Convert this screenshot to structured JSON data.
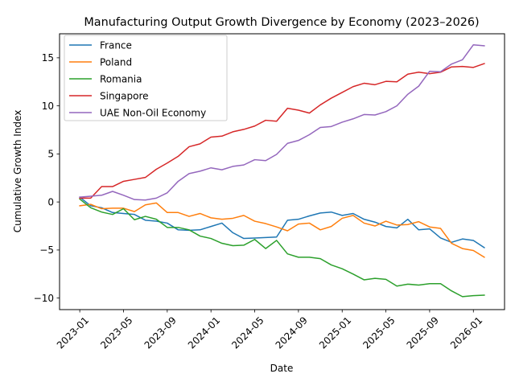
{
  "chart_data": {
    "type": "line",
    "title": "Manufacturing Output Growth Divergence by Economy (2023–2026)",
    "xlabel": "Date",
    "ylabel": "Cumulative Growth Index",
    "xtick_labels": [
      "2023-01",
      "2023-05",
      "2023-09",
      "2024-01",
      "2024-05",
      "2024-09",
      "2025-01",
      "2025-05",
      "2025-09",
      "2026-01"
    ],
    "xtick_positions": [
      0,
      4,
      8,
      12,
      16,
      20,
      24,
      28,
      32,
      36
    ],
    "xlim": [
      -1.85,
      38.85
    ],
    "ylim": [
      -11.2,
      17.5
    ],
    "yticks": [
      -10,
      -5,
      0,
      5,
      10,
      15
    ],
    "ytick_labels": [
      "−10",
      "−5",
      "0",
      "5",
      "10",
      "15"
    ],
    "grid": false,
    "legend_position": "top-left",
    "series": [
      {
        "name": "France",
        "color": "#1f77b4",
        "values": [
          0.5,
          -0.4,
          -0.6,
          -1.1,
          -1.2,
          -1.3,
          -1.9,
          -2.0,
          -2.2,
          -2.9,
          -2.95,
          -2.9,
          -2.55,
          -2.2,
          -3.2,
          -3.8,
          -3.75,
          -3.7,
          -3.65,
          -1.9,
          -1.8,
          -1.45,
          -1.15,
          -1.05,
          -1.4,
          -1.2,
          -1.8,
          -2.1,
          -2.55,
          -2.7,
          -1.8,
          -2.9,
          -2.8,
          -3.75,
          -4.2,
          -3.85,
          -4.0,
          -4.75
        ]
      },
      {
        "name": "Poland",
        "color": "#ff7f0e",
        "values": [
          -0.4,
          -0.25,
          -0.7,
          -0.65,
          -0.65,
          -1.0,
          -0.3,
          -0.1,
          -1.1,
          -1.1,
          -1.5,
          -1.2,
          -1.65,
          -1.8,
          -1.7,
          -1.4,
          -2.0,
          -2.25,
          -2.6,
          -3.0,
          -2.3,
          -2.2,
          -2.9,
          -2.55,
          -1.7,
          -1.4,
          -2.2,
          -2.5,
          -2.0,
          -2.4,
          -2.35,
          -2.05,
          -2.6,
          -2.75,
          -4.3,
          -4.85,
          -5.05,
          -5.75
        ]
      },
      {
        "name": "Romania",
        "color": "#2ca02c",
        "values": [
          0.3,
          -0.6,
          -1.05,
          -1.3,
          -0.7,
          -1.85,
          -1.5,
          -1.8,
          -2.65,
          -2.65,
          -2.9,
          -3.55,
          -3.8,
          -4.3,
          -4.55,
          -4.5,
          -3.9,
          -4.85,
          -4.0,
          -5.4,
          -5.75,
          -5.75,
          -5.9,
          -6.55,
          -6.95,
          -7.5,
          -8.1,
          -7.95,
          -8.05,
          -8.75,
          -8.55,
          -8.65,
          -8.5,
          -8.5,
          -9.25,
          -9.85,
          -9.75,
          -9.7
        ]
      },
      {
        "name": "Singapore",
        "color": "#d62728",
        "values": [
          0.4,
          0.4,
          1.6,
          1.6,
          2.15,
          2.35,
          2.55,
          3.4,
          4.05,
          4.75,
          5.75,
          6.05,
          6.75,
          6.85,
          7.3,
          7.55,
          7.9,
          8.5,
          8.4,
          9.75,
          9.55,
          9.25,
          10.1,
          10.8,
          11.4,
          12.0,
          12.35,
          12.2,
          12.55,
          12.5,
          13.3,
          13.5,
          13.35,
          13.5,
          14.05,
          14.1,
          14.0,
          14.4
        ]
      },
      {
        "name": "UAE Non-Oil Economy",
        "color": "#9467bd",
        "values": [
          0.5,
          0.6,
          0.7,
          1.1,
          0.7,
          0.25,
          0.2,
          0.4,
          0.95,
          2.15,
          2.95,
          3.2,
          3.55,
          3.35,
          3.7,
          3.85,
          4.4,
          4.3,
          4.95,
          6.1,
          6.4,
          7.0,
          7.75,
          7.85,
          8.3,
          8.65,
          9.1,
          9.05,
          9.4,
          10.0,
          11.2,
          12.05,
          13.6,
          13.55,
          14.35,
          14.8,
          16.35,
          16.25
        ]
      }
    ]
  }
}
